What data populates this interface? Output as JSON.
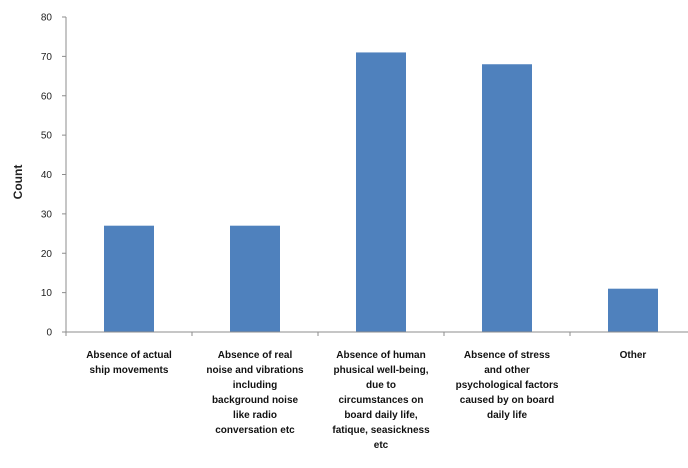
{
  "chart_data": {
    "type": "bar",
    "title": "",
    "xlabel": "",
    "ylabel": "Count",
    "ylim": [
      0,
      80
    ],
    "yticks": [
      0,
      10,
      20,
      30,
      40,
      50,
      60,
      70,
      80
    ],
    "grid": false,
    "legend": "none",
    "bar_color": "#4f81bd",
    "categories": [
      [
        "Absence of actual",
        "ship movements"
      ],
      [
        "Absence of real",
        "noise and vibrations",
        "including",
        "background noise",
        "like radio",
        "conversation etc"
      ],
      [
        "Absence of human",
        "phusical well-being,",
        "due to",
        "circumstances on",
        "board daily life,",
        "fatique, seasickness",
        "etc"
      ],
      [
        "Absence of stress",
        "and other",
        "psychological  factors",
        "caused by on board",
        "daily life"
      ],
      [
        "Other"
      ]
    ],
    "values": [
      27,
      27,
      71,
      68,
      11
    ]
  }
}
